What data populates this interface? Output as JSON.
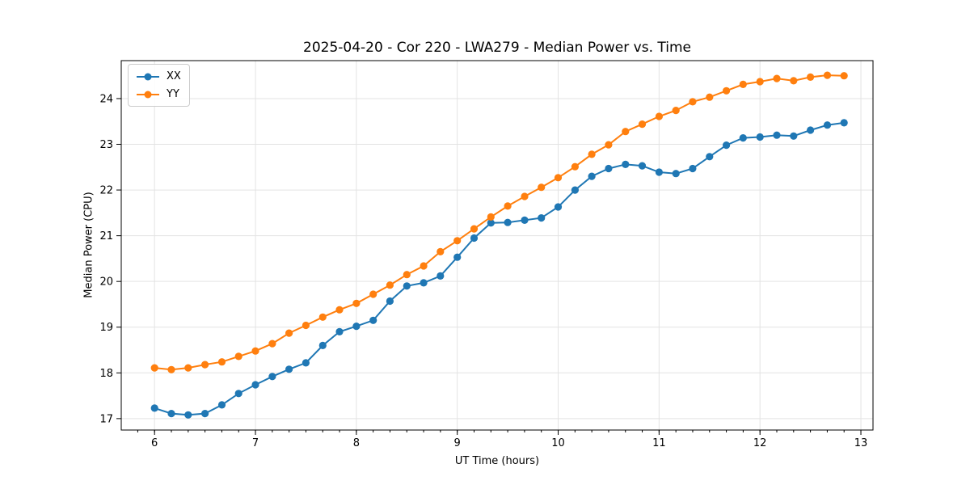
{
  "chart_data": {
    "type": "line",
    "title": "2025-04-20 - Cor 220 - LWA279 - Median Power vs. Time",
    "xlabel": "UT Time (hours)",
    "ylabel": "Median Power (CPU)",
    "xlim": [
      5.67,
      13.12
    ],
    "ylim": [
      16.75,
      24.83
    ],
    "xticks": [
      6,
      7,
      8,
      9,
      10,
      11,
      12,
      13
    ],
    "yticks": [
      17,
      18,
      19,
      20,
      21,
      22,
      23,
      24
    ],
    "x_minor_step": 0.166667,
    "grid": true,
    "grid_color": "#e3e3e3",
    "legend_position": "upper-left",
    "x": [
      6.0,
      6.167,
      6.333,
      6.5,
      6.667,
      6.833,
      7.0,
      7.167,
      7.333,
      7.5,
      7.667,
      7.833,
      8.0,
      8.167,
      8.333,
      8.5,
      8.667,
      8.833,
      9.0,
      9.167,
      9.333,
      9.5,
      9.667,
      9.833,
      10.0,
      10.167,
      10.333,
      10.5,
      10.667,
      10.833,
      11.0,
      11.167,
      11.333,
      11.5,
      11.667,
      11.833,
      12.0,
      12.167,
      12.333,
      12.5,
      12.667,
      12.833
    ],
    "series": [
      {
        "name": "XX",
        "color": "#1f77b4",
        "values": [
          17.23,
          17.11,
          17.08,
          17.11,
          17.3,
          17.55,
          17.74,
          17.92,
          18.08,
          18.22,
          18.6,
          18.9,
          19.02,
          19.15,
          19.57,
          19.9,
          19.97,
          20.12,
          20.53,
          20.95,
          21.28,
          21.29,
          21.34,
          21.39,
          21.63,
          22.0,
          22.3,
          22.47,
          22.56,
          22.53,
          22.39,
          22.36,
          22.47,
          22.73,
          22.98,
          23.14,
          23.16,
          23.2,
          23.18,
          23.31,
          23.42,
          23.47
        ]
      },
      {
        "name": "YY",
        "color": "#ff7f0e",
        "values": [
          18.11,
          18.07,
          18.11,
          18.18,
          18.24,
          18.36,
          18.48,
          18.64,
          18.87,
          19.04,
          19.22,
          19.38,
          19.52,
          19.72,
          19.92,
          20.15,
          20.34,
          20.65,
          20.89,
          21.15,
          21.41,
          21.65,
          21.86,
          22.06,
          22.27,
          22.51,
          22.78,
          22.99,
          23.28,
          23.44,
          23.61,
          23.74,
          23.93,
          24.03,
          24.17,
          24.31,
          24.37,
          24.44,
          24.39,
          24.47,
          24.51,
          24.5
        ]
      }
    ]
  }
}
